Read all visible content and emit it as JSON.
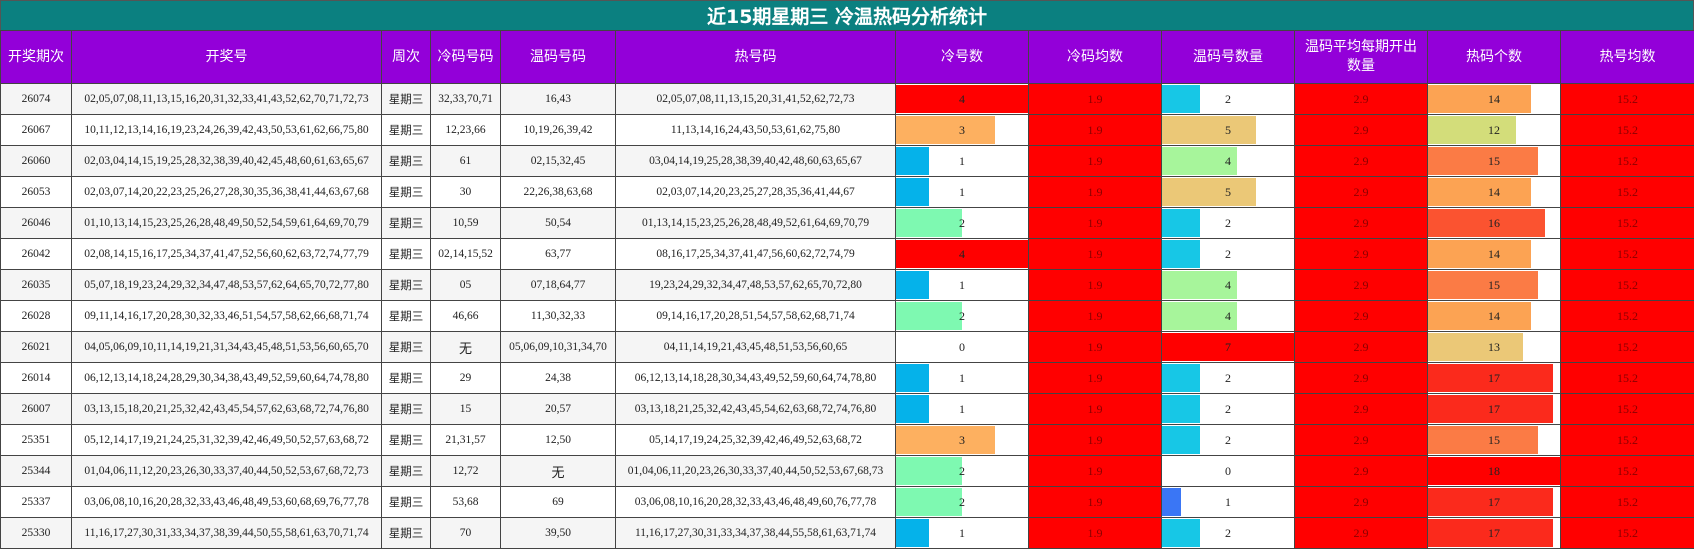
{
  "title": "近15期星期三 冷温热码分析统计",
  "columns": [
    "开奖期次",
    "开奖号",
    "周次",
    "冷码号码",
    "温码号码",
    "热号码",
    "冷号数",
    "冷码均数",
    "温码号数量",
    "温码平均每期开出数量",
    "热码个数",
    "热号均数"
  ],
  "max": {
    "cold": 4,
    "warm": 7,
    "hot": 18
  },
  "rows": [
    {
      "issue": "26074",
      "nums": "02,05,07,08,11,13,15,16,20,31,32,33,41,43,52,62,70,71,72,73",
      "week": "星期三",
      "cold_codes": "32,33,70,71",
      "warm_codes": "16,43",
      "hot_codes": "02,05,07,08,11,13,15,20,31,41,52,62,72,73",
      "cold_count": "4",
      "cold_avg": "1.9",
      "warm_count": "2",
      "warm_avg": "2.9",
      "hot_count": "14",
      "hot_avg": "15.2",
      "cold_color": "#ff0000",
      "warm_color": "#17c7e6",
      "hot_color": "#fca353"
    },
    {
      "issue": "26067",
      "nums": "10,11,12,13,14,16,19,23,24,26,39,42,43,50,53,61,62,66,75,80",
      "week": "星期三",
      "cold_codes": "12,23,66",
      "warm_codes": "10,19,26,39,42",
      "hot_codes": "11,13,14,16,24,43,50,53,61,62,75,80",
      "cold_count": "3",
      "cold_avg": "1.9",
      "warm_count": "5",
      "warm_avg": "2.9",
      "hot_count": "12",
      "hot_avg": "15.2",
      "cold_color": "#fdb060",
      "warm_color": "#ebc877",
      "hot_color": "#d3dd7a"
    },
    {
      "issue": "26060",
      "nums": "02,03,04,14,15,19,25,28,32,38,39,40,42,45,48,60,61,63,65,67",
      "week": "星期三",
      "cold_codes": "61",
      "warm_codes": "02,15,32,45",
      "hot_codes": "03,04,14,19,25,28,38,39,40,42,48,60,63,65,67",
      "cold_count": "1",
      "cold_avg": "1.9",
      "warm_count": "4",
      "warm_avg": "2.9",
      "hot_count": "15",
      "hot_avg": "15.2",
      "cold_color": "#05b2ea",
      "warm_color": "#a7f59b",
      "hot_color": "#fb7b45"
    },
    {
      "issue": "26053",
      "nums": "02,03,07,14,20,22,23,25,26,27,28,30,35,36,38,41,44,63,67,68",
      "week": "星期三",
      "cold_codes": "30",
      "warm_codes": "22,26,38,63,68",
      "hot_codes": "02,03,07,14,20,23,25,27,28,35,36,41,44,67",
      "cold_count": "1",
      "cold_avg": "1.9",
      "warm_count": "5",
      "warm_avg": "2.9",
      "hot_count": "14",
      "hot_avg": "15.2",
      "cold_color": "#05b2ea",
      "warm_color": "#ebc877",
      "hot_color": "#fca353"
    },
    {
      "issue": "26046",
      "nums": "01,10,13,14,15,23,25,26,28,48,49,50,52,54,59,61,64,69,70,79",
      "week": "星期三",
      "cold_codes": "10,59",
      "warm_codes": "50,54",
      "hot_codes": "01,13,14,15,23,25,26,28,48,49,52,61,64,69,70,79",
      "cold_count": "2",
      "cold_avg": "1.9",
      "warm_count": "2",
      "warm_avg": "2.9",
      "hot_count": "16",
      "hot_avg": "15.2",
      "cold_color": "#7ef9b1",
      "warm_color": "#17c7e6",
      "hot_color": "#fb5330"
    },
    {
      "issue": "26042",
      "nums": "02,08,14,15,16,17,25,34,37,41,47,52,56,60,62,63,72,74,77,79",
      "week": "星期三",
      "cold_codes": "02,14,15,52",
      "warm_codes": "63,77",
      "hot_codes": "08,16,17,25,34,37,41,47,56,60,62,72,74,79",
      "cold_count": "4",
      "cold_avg": "1.9",
      "warm_count": "2",
      "warm_avg": "2.9",
      "hot_count": "14",
      "hot_avg": "15.2",
      "cold_color": "#ff0000",
      "warm_color": "#17c7e6",
      "hot_color": "#fca353"
    },
    {
      "issue": "26035",
      "nums": "05,07,18,19,23,24,29,32,34,47,48,53,57,62,64,65,70,72,77,80",
      "week": "星期三",
      "cold_codes": "05",
      "warm_codes": "07,18,64,77",
      "hot_codes": "19,23,24,29,32,34,47,48,53,57,62,65,70,72,80",
      "cold_count": "1",
      "cold_avg": "1.9",
      "warm_count": "4",
      "warm_avg": "2.9",
      "hot_count": "15",
      "hot_avg": "15.2",
      "cold_color": "#05b2ea",
      "warm_color": "#a7f59b",
      "hot_color": "#fb7b45"
    },
    {
      "issue": "26028",
      "nums": "09,11,14,16,17,20,28,30,32,33,46,51,54,57,58,62,66,68,71,74",
      "week": "星期三",
      "cold_codes": "46,66",
      "warm_codes": "11,30,32,33",
      "hot_codes": "09,14,16,17,20,28,51,54,57,58,62,68,71,74",
      "cold_count": "2",
      "cold_avg": "1.9",
      "warm_count": "4",
      "warm_avg": "2.9",
      "hot_count": "14",
      "hot_avg": "15.2",
      "cold_color": "#7ef9b1",
      "warm_color": "#a7f59b",
      "hot_color": "#fca353"
    },
    {
      "issue": "26021",
      "nums": "04,05,06,09,10,11,14,19,21,31,34,43,45,48,51,53,56,60,65,70",
      "week": "星期三",
      "cold_codes": "无",
      "warm_codes": "05,06,09,10,31,34,70",
      "hot_codes": "04,11,14,19,21,43,45,48,51,53,56,60,65",
      "cold_count": "0",
      "cold_avg": "1.9",
      "warm_count": "7",
      "warm_avg": "2.9",
      "hot_count": "13",
      "hot_avg": "15.2",
      "cold_color": "#ffffff",
      "warm_color": "#ff0000",
      "hot_color": "#ebc877"
    },
    {
      "issue": "26014",
      "nums": "06,12,13,14,18,24,28,29,30,34,38,43,49,52,59,60,64,74,78,80",
      "week": "星期三",
      "cold_codes": "29",
      "warm_codes": "24,38",
      "hot_codes": "06,12,13,14,18,28,30,34,43,49,52,59,60,64,74,78,80",
      "cold_count": "1",
      "cold_avg": "1.9",
      "warm_count": "2",
      "warm_avg": "2.9",
      "hot_count": "17",
      "hot_avg": "15.2",
      "cold_color": "#05b2ea",
      "warm_color": "#17c7e6",
      "hot_color": "#fb2a1c"
    },
    {
      "issue": "26007",
      "nums": "03,13,15,18,20,21,25,32,42,43,45,54,57,62,63,68,72,74,76,80",
      "week": "星期三",
      "cold_codes": "15",
      "warm_codes": "20,57",
      "hot_codes": "03,13,18,21,25,32,42,43,45,54,62,63,68,72,74,76,80",
      "cold_count": "1",
      "cold_avg": "1.9",
      "warm_count": "2",
      "warm_avg": "2.9",
      "hot_count": "17",
      "hot_avg": "15.2",
      "cold_color": "#05b2ea",
      "warm_color": "#17c7e6",
      "hot_color": "#fb2a1c"
    },
    {
      "issue": "25351",
      "nums": "05,12,14,17,19,21,24,25,31,32,39,42,46,49,50,52,57,63,68,72",
      "week": "星期三",
      "cold_codes": "21,31,57",
      "warm_codes": "12,50",
      "hot_codes": "05,14,17,19,24,25,32,39,42,46,49,52,63,68,72",
      "cold_count": "3",
      "cold_avg": "1.9",
      "warm_count": "2",
      "warm_avg": "2.9",
      "hot_count": "15",
      "hot_avg": "15.2",
      "cold_color": "#fdb060",
      "warm_color": "#17c7e6",
      "hot_color": "#fb7b45"
    },
    {
      "issue": "25344",
      "nums": "01,04,06,11,12,20,23,26,30,33,37,40,44,50,52,53,67,68,72,73",
      "week": "星期三",
      "cold_codes": "12,72",
      "warm_codes": "无",
      "hot_codes": "01,04,06,11,20,23,26,30,33,37,40,44,50,52,53,67,68,73",
      "cold_count": "2",
      "cold_avg": "1.9",
      "warm_count": "0",
      "warm_avg": "2.9",
      "hot_count": "18",
      "hot_avg": "15.2",
      "cold_color": "#7ef9b1",
      "warm_color": "#ffffff",
      "hot_color": "#ff0000"
    },
    {
      "issue": "25337",
      "nums": "03,06,08,10,16,20,28,32,33,43,46,48,49,53,60,68,69,76,77,78",
      "week": "星期三",
      "cold_codes": "53,68",
      "warm_codes": "69",
      "hot_codes": "03,06,08,10,16,20,28,32,33,43,46,48,49,60,76,77,78",
      "cold_count": "2",
      "cold_avg": "1.9",
      "warm_count": "1",
      "warm_avg": "2.9",
      "hot_count": "17",
      "hot_avg": "15.2",
      "cold_color": "#7ef9b1",
      "warm_color": "#3a76f5",
      "hot_color": "#fb2a1c"
    },
    {
      "issue": "25330",
      "nums": "11,16,17,27,30,31,33,34,37,38,39,44,50,55,58,61,63,70,71,74",
      "week": "星期三",
      "cold_codes": "70",
      "warm_codes": "39,50",
      "hot_codes": "11,16,17,27,30,31,33,34,37,38,44,55,58,61,63,71,74",
      "cold_count": "1",
      "cold_avg": "1.9",
      "warm_count": "2",
      "warm_avg": "2.9",
      "hot_count": "17",
      "hot_avg": "15.2",
      "cold_color": "#05b2ea",
      "warm_color": "#17c7e6",
      "hot_color": "#fb2a1c"
    }
  ]
}
